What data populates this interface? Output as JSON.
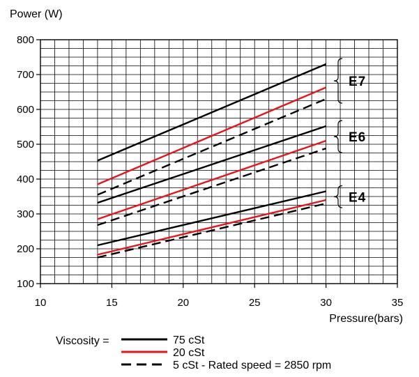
{
  "chart_data": {
    "type": "line",
    "ylabel": "Power (W)",
    "xlabel": "Pressure(bars)",
    "xlim": [
      10,
      35
    ],
    "ylim": [
      100,
      800
    ],
    "x_ticks": [
      10,
      15,
      20,
      25,
      30,
      35
    ],
    "y_ticks": [
      100,
      200,
      300,
      400,
      500,
      600,
      700,
      800
    ],
    "grid": true,
    "groups": [
      {
        "name": "E7",
        "series": [
          {
            "viscosity": "75 cSt",
            "x": [
              14,
              30
            ],
            "y": [
              453,
              730
            ]
          },
          {
            "viscosity": "20 cSt",
            "x": [
              14,
              30
            ],
            "y": [
              385,
              663
            ]
          },
          {
            "viscosity": "5 cSt",
            "x": [
              14,
              30
            ],
            "y": [
              355,
              630
            ]
          }
        ]
      },
      {
        "name": "E6",
        "series": [
          {
            "viscosity": "75 cSt",
            "x": [
              14,
              30
            ],
            "y": [
              332,
              552
            ]
          },
          {
            "viscosity": "20 cSt",
            "x": [
              14,
              30
            ],
            "y": [
              285,
              510
            ]
          },
          {
            "viscosity": "5 cSt",
            "x": [
              14,
              30
            ],
            "y": [
              268,
              488
            ]
          }
        ]
      },
      {
        "name": "E4",
        "series": [
          {
            "viscosity": "75 cSt",
            "x": [
              14,
              30
            ],
            "y": [
              210,
              365
            ]
          },
          {
            "viscosity": "20 cSt",
            "x": [
              14,
              30
            ],
            "y": [
              183,
              340
            ]
          },
          {
            "viscosity": "5 cSt",
            "x": [
              14,
              30
            ],
            "y": [
              175,
              330
            ]
          }
        ]
      }
    ],
    "legend": {
      "title": "Viscosity  =",
      "entries": [
        {
          "label": "75 cSt",
          "color": "#000000",
          "dash": false
        },
        {
          "label": "20 cSt",
          "color": "#e8141b",
          "dash": false
        },
        {
          "label": "5 cSt  -  Rated speed = 2850 rpm",
          "color": "#000000",
          "dash": true
        }
      ]
    },
    "colors": {
      "75 cSt": "#000000",
      "20 cSt": "#e8141b",
      "5 cSt": "#000000"
    }
  }
}
